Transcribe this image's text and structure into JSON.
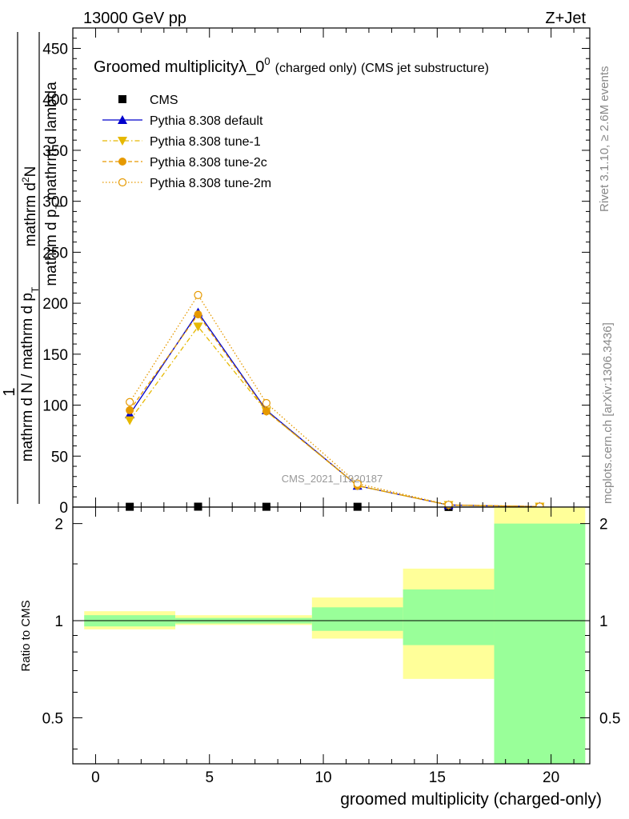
{
  "header": {
    "left": "13000 GeV pp",
    "right": "Z+Jet"
  },
  "side_labels": {
    "rivet": "Rivet 3.1.10, ≥ 2.6M events",
    "mcplots": "mcplots.cern.ch [arXiv:1306.3436]"
  },
  "chart_data": [
    {
      "type": "line",
      "title_main": "Groomed multiplicityλ_0",
      "title_sup": "0",
      "title_small": "(charged only)",
      "title_rest": "(CMS jet substructure)",
      "ylabel_parts": [
        "mathrm d N / mathrm d p",
        "T",
        "mathrm d lambda",
        "mathrm d",
        "2",
        "N"
      ],
      "ylabel_top": "1",
      "ylabel_bottom": "mathrm d N / mathrm d p",
      "ylabel_bottom_sub": "T",
      "ylabel_numerator": "mathrm d",
      "ylabel_num_sup": "2",
      "ylabel_num_tail": "N",
      "ylabel_den": "mathrm d p",
      "ylabel_den_sub": "T",
      "ylabel_den_tail": "mathrm d lambda",
      "xlim": [
        -1,
        21.7
      ],
      "ylim": [
        0,
        470
      ],
      "yticks": [
        0,
        50,
        100,
        150,
        200,
        250,
        300,
        350,
        400,
        450
      ],
      "xticks": [
        0,
        5,
        10,
        15,
        20
      ],
      "watermark": "CMS_2021_I1920187",
      "legend_position": "top-left",
      "legend": [
        "CMS",
        "Pythia 8.308 default",
        "Pythia 8.308 tune-1",
        "Pythia 8.308 tune-2c",
        "Pythia 8.308 tune-2m"
      ],
      "series": [
        {
          "name": "CMS",
          "color": "#000000",
          "marker": "square",
          "x": [
            1.5,
            4.5,
            7.5,
            11.5,
            15.5,
            19.5
          ],
          "y": [
            0.3,
            0.4,
            0.3,
            0.3,
            0.1,
            0.05
          ]
        },
        {
          "name": "Pythia 8.308 default",
          "color": "#0000cc",
          "marker": "triangle-up",
          "line": "solid",
          "x": [
            1.5,
            4.5,
            7.5,
            11.5,
            15.5,
            19.5
          ],
          "y": [
            91,
            191,
            95,
            21,
            2,
            0.5
          ]
        },
        {
          "name": "Pythia 8.308 tune-1",
          "color": "#e6b800",
          "marker": "triangle-down",
          "line": "dashdot",
          "x": [
            1.5,
            4.5,
            7.5,
            11.5,
            15.5,
            19.5
          ],
          "y": [
            85,
            177,
            94,
            21,
            2,
            0.4
          ]
        },
        {
          "name": "Pythia 8.308 tune-2c",
          "color": "#e69900",
          "marker": "circle",
          "line": "dashed",
          "x": [
            1.5,
            4.5,
            7.5,
            11.5,
            15.5,
            19.5
          ],
          "y": [
            95,
            189,
            94,
            21,
            2,
            0.5
          ]
        },
        {
          "name": "Pythia 8.308 tune-2m",
          "color": "#e69900",
          "marker": "circle-open",
          "line": "dotted",
          "x": [
            1.5,
            4.5,
            7.5,
            11.5,
            15.5,
            19.5
          ],
          "y": [
            103,
            208,
            102,
            23,
            2.2,
            0.5
          ]
        }
      ]
    },
    {
      "type": "area",
      "ylabel": "Ratio to CMS",
      "xlabel": "groomed multiplicity (charged-only)",
      "ylim": [
        0.36,
        2.25
      ],
      "yticks": [
        0.5,
        1,
        2
      ],
      "ytick_labels": [
        "0.5",
        "1",
        "2"
      ],
      "xticks": [
        0,
        5,
        10,
        15,
        20
      ],
      "xtick_labels": [
        "0",
        "5",
        "10",
        "15",
        "20"
      ],
      "band_colors": {
        "outer": "#ffff99",
        "inner": "#99ff99"
      },
      "bins": [
        {
          "lo": -0.5,
          "hi": 3.5,
          "outer": [
            0.94,
            1.07
          ],
          "inner": [
            0.96,
            1.04
          ]
        },
        {
          "lo": 3.5,
          "hi": 9.5,
          "outer": [
            0.97,
            1.04
          ],
          "inner": [
            0.98,
            1.02
          ]
        },
        {
          "lo": 9.5,
          "hi": 13.5,
          "outer": [
            0.88,
            1.18
          ],
          "inner": [
            0.93,
            1.1
          ]
        },
        {
          "lo": 13.5,
          "hi": 17.5,
          "outer": [
            0.66,
            1.45
          ],
          "inner": [
            0.84,
            1.25
          ]
        },
        {
          "lo": 17.5,
          "hi": 21.5,
          "outer": [
            0.36,
            2.25
          ],
          "inner": [
            0.36,
            2.0
          ]
        }
      ]
    }
  ]
}
